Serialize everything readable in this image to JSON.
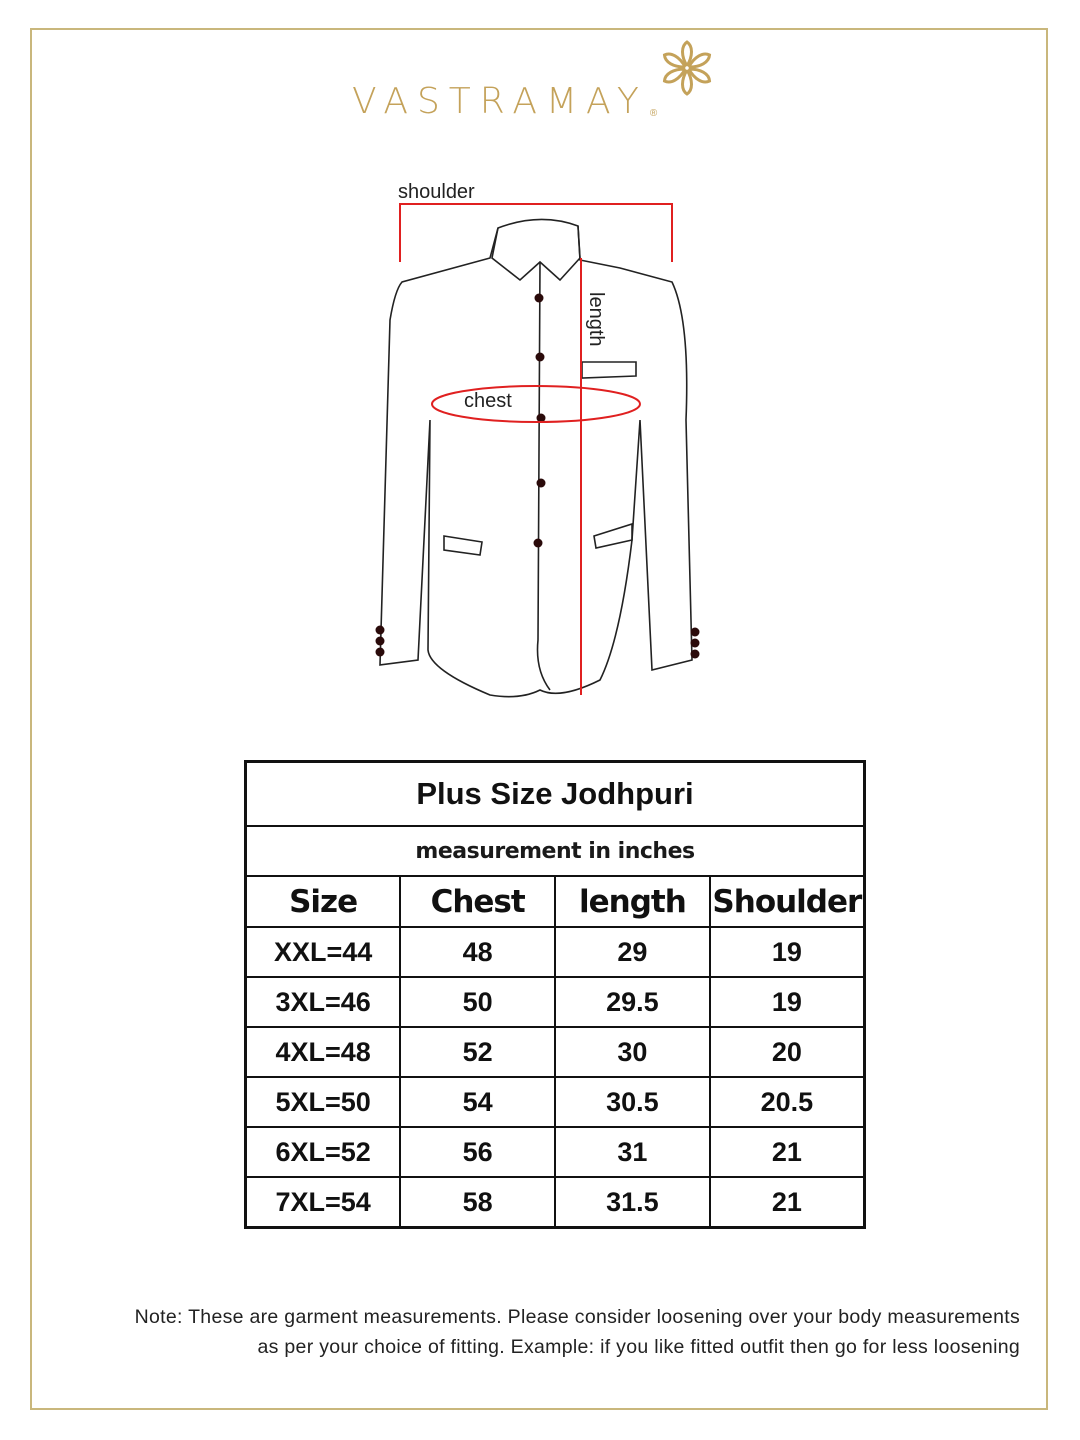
{
  "brand": {
    "name": "VASTRAMAY",
    "registered": "®",
    "color": "#c4a25a"
  },
  "diagram": {
    "labels": {
      "shoulder": "shoulder",
      "length": "length",
      "chest": "chest"
    },
    "measure_color": "#e02020"
  },
  "table": {
    "title": "Plus Size Jodhpuri",
    "subtitle": "measurement in inches",
    "headers": [
      "Size",
      "Chest",
      "length",
      "Shoulder"
    ],
    "rows": [
      [
        "XXL=44",
        "48",
        "29",
        "19"
      ],
      [
        "3XL=46",
        "50",
        "29.5",
        "19"
      ],
      [
        "4XL=48",
        "52",
        "30",
        "20"
      ],
      [
        "5XL=50",
        "54",
        "30.5",
        "20.5"
      ],
      [
        "6XL=52",
        "56",
        "31",
        "21"
      ],
      [
        "7XL=54",
        "58",
        "31.5",
        "21"
      ]
    ]
  },
  "note": {
    "line1": "Note: These are garment measurements. Please consider loosening over your body measurements",
    "line2": "as per your choice of fitting. Example: if you like fitted outfit then go for less loosening"
  }
}
